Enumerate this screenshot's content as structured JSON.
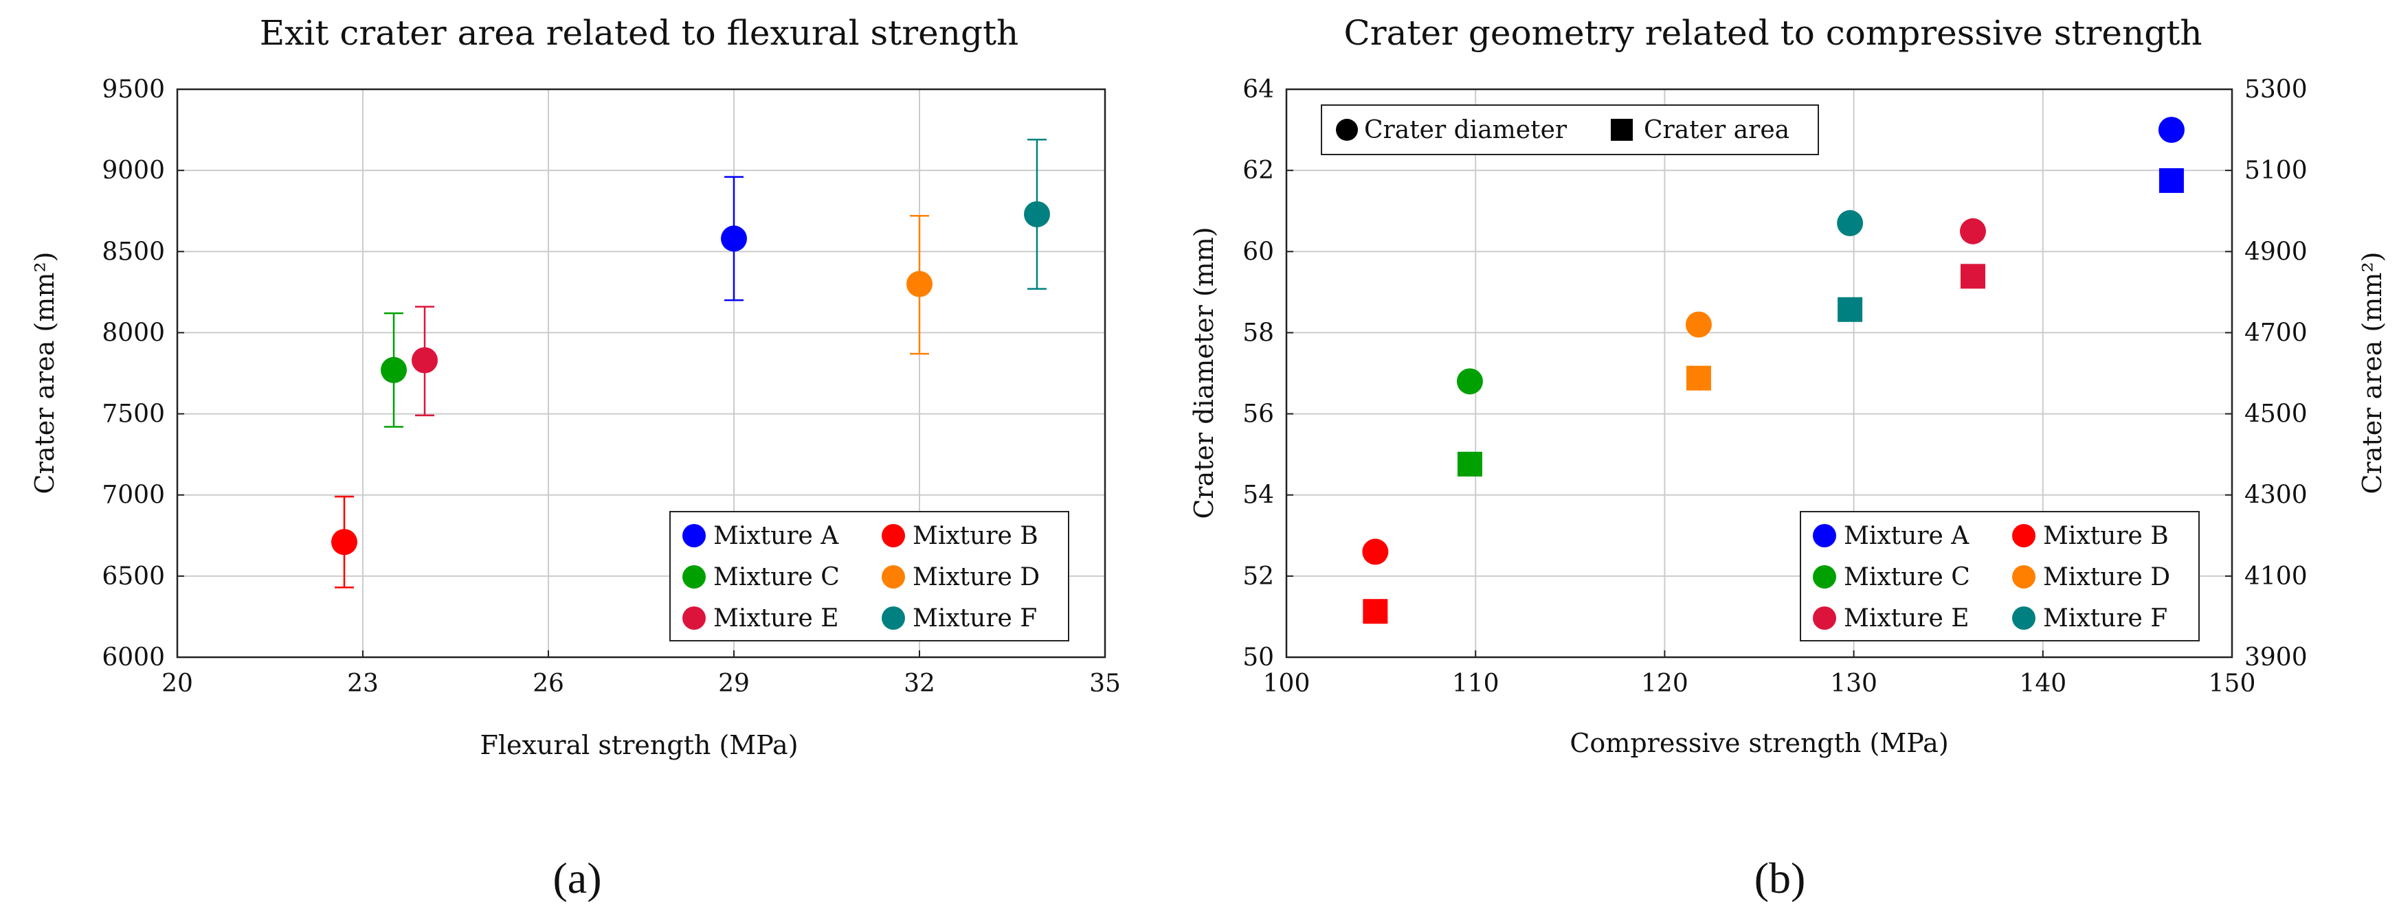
{
  "panel_labels": [
    "(a)",
    "(b)"
  ],
  "chart_data": [
    {
      "type": "scatter",
      "title": "Exit crater area related to flexural strength",
      "xlabel": "Flexural strength (MPa)",
      "ylabel": "Crater area (mm²)",
      "xlim": [
        20,
        35
      ],
      "ylim": [
        6000,
        9500
      ],
      "xticks": [
        20,
        23,
        26,
        29,
        32,
        35
      ],
      "yticks": [
        6000,
        6500,
        7000,
        7500,
        8000,
        8500,
        9000,
        9500
      ],
      "grid": true,
      "legend_position": "bottom-right",
      "series": [
        {
          "name": "Mixture A",
          "color": "#0000ff",
          "marker": "circle",
          "x": 29.0,
          "y": 8580,
          "err_low": 8200,
          "err_high": 8960
        },
        {
          "name": "Mixture B",
          "color": "#ff0000",
          "marker": "circle",
          "x": 22.7,
          "y": 6710,
          "err_low": 6430,
          "err_high": 6990
        },
        {
          "name": "Mixture C",
          "color": "#00a000",
          "marker": "circle",
          "x": 23.5,
          "y": 7770,
          "err_low": 7420,
          "err_high": 8120
        },
        {
          "name": "Mixture D",
          "color": "#ff8000",
          "marker": "circle",
          "x": 32.0,
          "y": 8300,
          "err_low": 7870,
          "err_high": 8720
        },
        {
          "name": "Mixture E",
          "color": "#dc143c",
          "marker": "circle",
          "x": 24.0,
          "y": 7830,
          "err_low": 7490,
          "err_high": 8160
        },
        {
          "name": "Mixture F",
          "color": "#008080",
          "marker": "circle",
          "x": 33.9,
          "y": 8730,
          "err_low": 8270,
          "err_high": 9190
        }
      ]
    },
    {
      "type": "scatter",
      "title": "Crater geometry related to compressive strength",
      "xlabel": "Compressive strength (MPa)",
      "ylabel": "Crater diameter (mm)",
      "y2label": "Crater area (mm²)",
      "xlim": [
        100,
        150
      ],
      "ylim": [
        50,
        64
      ],
      "y2lim": [
        3900,
        5300
      ],
      "xticks": [
        100,
        110,
        120,
        130,
        140,
        150
      ],
      "yticks": [
        50,
        52,
        54,
        56,
        58,
        60,
        62,
        64
      ],
      "y2ticks": [
        3900,
        4100,
        4300,
        4500,
        4700,
        4900,
        5100,
        5300
      ],
      "grid": true,
      "marker_legend": [
        {
          "marker": "circle",
          "label": "Crater diameter"
        },
        {
          "marker": "square",
          "label": "Crater area"
        }
      ],
      "legend_position": "bottom-right",
      "series": [
        {
          "name": "Mixture A",
          "color": "#0000ff",
          "x": 146.8,
          "diameter": 63.0,
          "area": 5075
        },
        {
          "name": "Mixture B",
          "color": "#ff0000",
          "x": 104.7,
          "diameter": 52.6,
          "area": 4013
        },
        {
          "name": "Mixture C",
          "color": "#00a000",
          "x": 109.7,
          "diameter": 56.8,
          "area": 4376
        },
        {
          "name": "Mixture D",
          "color": "#ff8000",
          "x": 121.8,
          "diameter": 58.2,
          "area": 4588
        },
        {
          "name": "Mixture E",
          "color": "#dc143c",
          "x": 136.3,
          "diameter": 60.5,
          "area": 4839
        },
        {
          "name": "Mixture F",
          "color": "#008080",
          "x": 129.8,
          "diameter": 60.7,
          "area": 4757
        }
      ]
    }
  ]
}
